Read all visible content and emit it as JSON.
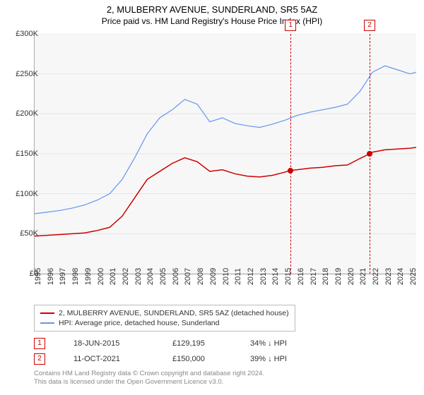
{
  "title": "2, MULBERRY AVENUE, SUNDERLAND, SR5 5AZ",
  "subtitle": "Price paid vs. HM Land Registry's House Price Index (HPI)",
  "chart": {
    "type": "line",
    "background_color": "#f7f7f7",
    "grid_color": "#e5e5e5",
    "axis_color": "#aaaaaa",
    "x_range": [
      1995,
      2025.5
    ],
    "y_range": [
      0,
      300000
    ],
    "y_ticks": [
      0,
      50000,
      100000,
      150000,
      200000,
      250000,
      300000
    ],
    "y_tick_labels": [
      "£0",
      "£50K",
      "£100K",
      "£150K",
      "£200K",
      "£250K",
      "£300K"
    ],
    "x_ticks": [
      1995,
      1996,
      1997,
      1998,
      1999,
      2000,
      2001,
      2002,
      2003,
      2004,
      2005,
      2006,
      2007,
      2008,
      2009,
      2010,
      2011,
      2012,
      2013,
      2014,
      2015,
      2016,
      2017,
      2018,
      2019,
      2020,
      2021,
      2022,
      2023,
      2024,
      2025
    ],
    "label_fontsize": 11,
    "label_color": "#333333",
    "series": [
      {
        "name": "property",
        "label": "2, MULBERRY AVENUE, SUNDERLAND, SR5 5AZ (detached house)",
        "color": "#cc0000",
        "line_width": 1.5,
        "points": [
          [
            1995,
            47000
          ],
          [
            1996,
            48000
          ],
          [
            1997,
            49000
          ],
          [
            1998,
            50000
          ],
          [
            1999,
            51000
          ],
          [
            2000,
            54000
          ],
          [
            2001,
            58000
          ],
          [
            2002,
            72000
          ],
          [
            2003,
            95000
          ],
          [
            2004,
            118000
          ],
          [
            2005,
            128000
          ],
          [
            2006,
            138000
          ],
          [
            2007,
            145000
          ],
          [
            2008,
            140000
          ],
          [
            2009,
            128000
          ],
          [
            2010,
            130000
          ],
          [
            2011,
            125000
          ],
          [
            2012,
            122000
          ],
          [
            2013,
            121000
          ],
          [
            2014,
            123000
          ],
          [
            2015,
            127000
          ],
          [
            2015.46,
            129195
          ],
          [
            2016,
            130000
          ],
          [
            2017,
            132000
          ],
          [
            2018,
            133000
          ],
          [
            2019,
            135000
          ],
          [
            2020,
            136000
          ],
          [
            2021,
            144000
          ],
          [
            2021.78,
            150000
          ],
          [
            2022,
            152000
          ],
          [
            2023,
            155000
          ],
          [
            2024,
            156000
          ],
          [
            2025,
            157000
          ],
          [
            2025.5,
            158000
          ]
        ]
      },
      {
        "name": "hpi",
        "label": "HPI: Average price, detached house, Sunderland",
        "color": "#6495ed",
        "line_width": 1.2,
        "points": [
          [
            1995,
            75000
          ],
          [
            1996,
            77000
          ],
          [
            1997,
            79000
          ],
          [
            1998,
            82000
          ],
          [
            1999,
            86000
          ],
          [
            2000,
            92000
          ],
          [
            2001,
            100000
          ],
          [
            2002,
            118000
          ],
          [
            2003,
            145000
          ],
          [
            2004,
            175000
          ],
          [
            2005,
            195000
          ],
          [
            2006,
            205000
          ],
          [
            2007,
            218000
          ],
          [
            2008,
            212000
          ],
          [
            2009,
            190000
          ],
          [
            2010,
            195000
          ],
          [
            2011,
            188000
          ],
          [
            2012,
            185000
          ],
          [
            2013,
            183000
          ],
          [
            2014,
            187000
          ],
          [
            2015,
            192000
          ],
          [
            2016,
            198000
          ],
          [
            2017,
            202000
          ],
          [
            2018,
            205000
          ],
          [
            2019,
            208000
          ],
          [
            2020,
            212000
          ],
          [
            2021,
            228000
          ],
          [
            2022,
            252000
          ],
          [
            2023,
            260000
          ],
          [
            2024,
            255000
          ],
          [
            2025,
            250000
          ],
          [
            2025.5,
            252000
          ]
        ]
      }
    ],
    "markers": [
      {
        "id": "1",
        "x": 2015.46,
        "y": 129195
      },
      {
        "id": "2",
        "x": 2021.78,
        "y": 150000
      }
    ]
  },
  "legend": {
    "border_color": "#bbbbbb",
    "background_color": "#ffffff",
    "fontsize": 10.5
  },
  "transactions": [
    {
      "id": "1",
      "date": "18-JUN-2015",
      "price": "£129,195",
      "pct": "34% ↓ HPI"
    },
    {
      "id": "2",
      "date": "11-OCT-2021",
      "price": "£150,000",
      "pct": "39% ↓ HPI"
    }
  ],
  "footnote_line1": "Contains HM Land Registry data © Crown copyright and database right 2024.",
  "footnote_line2": "This data is licensed under the Open Government Licence v3.0.",
  "colors": {
    "marker_red": "#cc0000",
    "footnote": "#888888"
  }
}
